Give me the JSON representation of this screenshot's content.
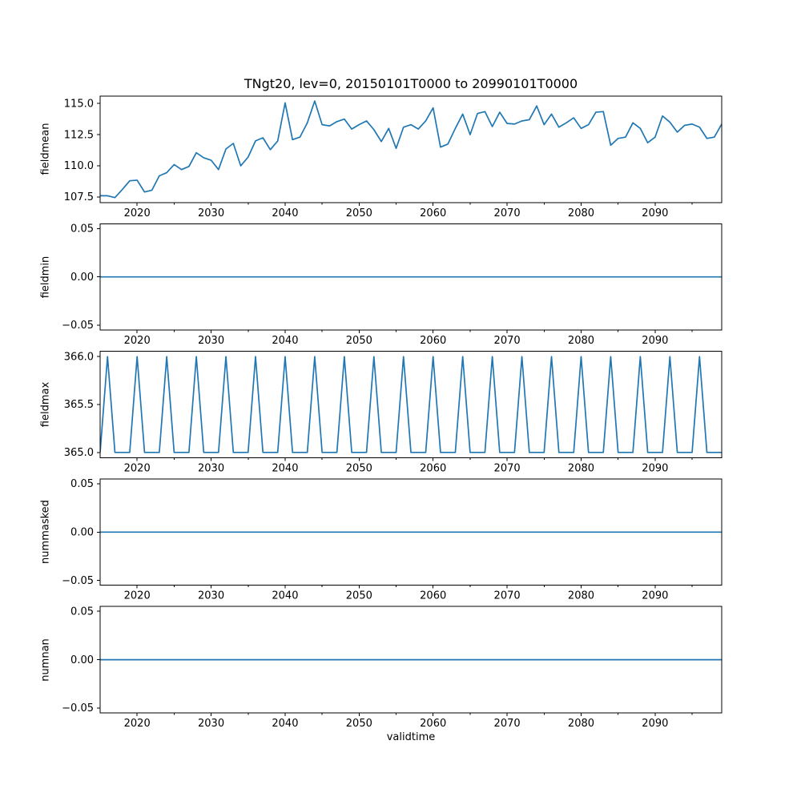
{
  "figure": {
    "title": "TNgt20, lev=0, 20150101T0000 to 20990101T0000",
    "background": "#ffffff",
    "line_color": "#1f77b4",
    "axis_color": "#000000"
  },
  "xaxis": {
    "label": "validtime",
    "range": [
      2015,
      2099
    ],
    "ticks_major": [
      2020,
      2030,
      2040,
      2050,
      2060,
      2070,
      2080,
      2090
    ],
    "tick_labels": [
      "2020",
      "2030",
      "2040",
      "2050",
      "2060",
      "2070",
      "2080",
      "2090"
    ],
    "ticks_minor": [
      2025,
      2035,
      2045,
      2055,
      2065,
      2075,
      2085,
      2095
    ]
  },
  "chart_data": [
    {
      "type": "line",
      "name": "fieldmean",
      "ylabel": "fieldmean",
      "ylim": [
        107.06,
        115.59
      ],
      "yticks": [
        107.5,
        110.0,
        112.5,
        115.0
      ],
      "ytick_labels": [
        "107.5",
        "110.0",
        "112.5",
        "115.0"
      ],
      "x_start": 2015,
      "x_step": 1,
      "values": [
        107.6,
        107.6,
        107.45,
        108.1,
        108.8,
        108.85,
        107.9,
        108.05,
        109.2,
        109.45,
        110.1,
        109.7,
        109.95,
        111.05,
        110.65,
        110.45,
        109.7,
        111.35,
        111.8,
        110.0,
        110.7,
        112.0,
        112.25,
        111.3,
        112.0,
        115.05,
        112.1,
        112.3,
        113.45,
        115.2,
        113.3,
        113.2,
        113.55,
        113.75,
        112.95,
        113.3,
        113.6,
        112.9,
        111.95,
        113.0,
        111.4,
        113.1,
        113.3,
        112.95,
        113.6,
        114.65,
        111.5,
        111.75,
        113.0,
        114.15,
        112.5,
        114.2,
        114.35,
        113.15,
        114.3,
        113.4,
        113.35,
        113.6,
        113.7,
        114.8,
        113.3,
        114.15,
        113.1,
        113.45,
        113.85,
        113.0,
        113.3,
        114.3,
        114.35,
        111.65,
        112.2,
        112.3,
        113.45,
        113.0,
        111.85,
        112.3,
        114.0,
        113.5,
        112.7,
        113.25,
        113.35,
        113.1,
        112.2,
        112.3,
        113.35
      ]
    },
    {
      "type": "line",
      "name": "fieldmin",
      "ylabel": "fieldmin",
      "ylim": [
        -0.055,
        0.055
      ],
      "yticks": [
        -0.05,
        0.0,
        0.05
      ],
      "ytick_labels": [
        "−0.05",
        "0.00",
        "0.05"
      ],
      "x_start": 2015,
      "x_step": 1,
      "constant": 0,
      "n_points": 85
    },
    {
      "type": "line",
      "name": "fieldmax",
      "ylabel": "fieldmax",
      "ylim": [
        364.945,
        366.055
      ],
      "yticks": [
        365.0,
        365.5,
        366.0
      ],
      "ytick_labels": [
        "365.0",
        "365.5",
        "366.0"
      ],
      "x_start": 2015,
      "x_step": 1,
      "values": [
        365,
        366,
        365,
        365,
        365,
        366,
        365,
        365,
        365,
        366,
        365,
        365,
        365,
        366,
        365,
        365,
        365,
        366,
        365,
        365,
        365,
        366,
        365,
        365,
        365,
        366,
        365,
        365,
        365,
        366,
        365,
        365,
        365,
        366,
        365,
        365,
        365,
        366,
        365,
        365,
        365,
        366,
        365,
        365,
        365,
        366,
        365,
        365,
        365,
        366,
        365,
        365,
        365,
        366,
        365,
        365,
        365,
        366,
        365,
        365,
        365,
        366,
        365,
        365,
        365,
        366,
        365,
        365,
        365,
        366,
        365,
        365,
        365,
        366,
        365,
        365,
        365,
        366,
        365,
        365,
        365,
        366,
        365,
        365,
        365
      ]
    },
    {
      "type": "line",
      "name": "nummasked",
      "ylabel": "nummasked",
      "ylim": [
        -0.055,
        0.055
      ],
      "yticks": [
        -0.05,
        0.0,
        0.05
      ],
      "ytick_labels": [
        "−0.05",
        "0.00",
        "0.05"
      ],
      "x_start": 2015,
      "x_step": 1,
      "constant": 0,
      "n_points": 85
    },
    {
      "type": "line",
      "name": "numnan",
      "ylabel": "numnan",
      "ylim": [
        -0.055,
        0.055
      ],
      "yticks": [
        -0.05,
        0.0,
        0.05
      ],
      "ytick_labels": [
        "−0.05",
        "0.00",
        "0.05"
      ],
      "x_start": 2015,
      "x_step": 1,
      "constant": 0,
      "n_points": 85
    }
  ]
}
